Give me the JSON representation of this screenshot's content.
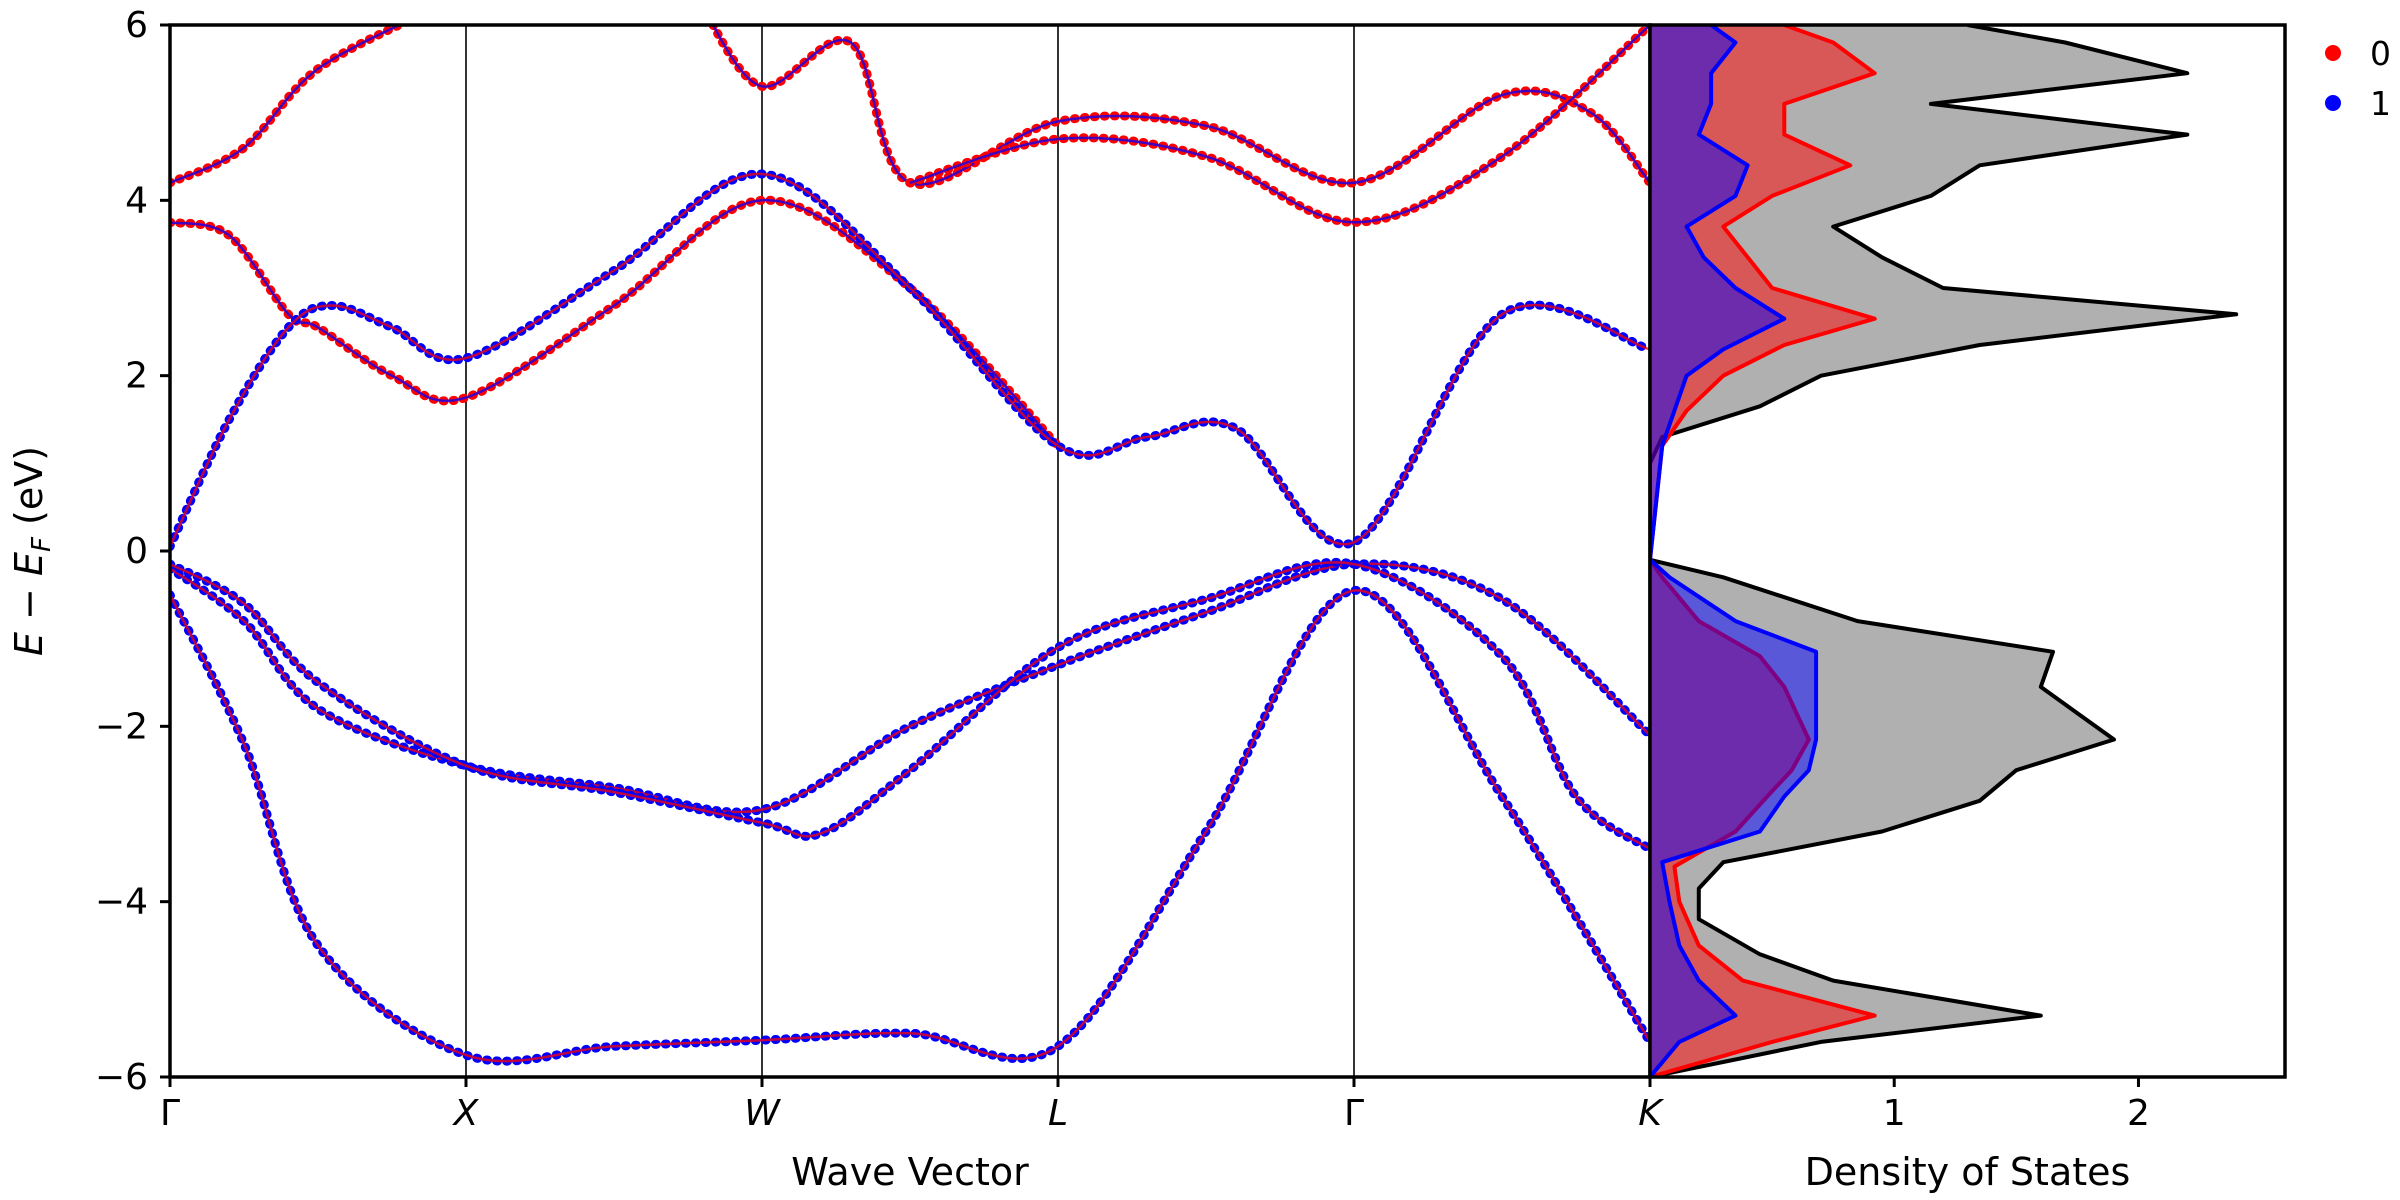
{
  "chart_data": [
    {
      "type": "line",
      "panel": "band-structure",
      "xlabel": "Wave Vector",
      "ylabel_parts": {
        "base": "E − E",
        "sub": "F",
        "unit": " (eV)"
      },
      "ylim": [
        -6,
        6
      ],
      "yticks": [
        -6,
        -4,
        -2,
        0,
        2,
        4,
        6
      ],
      "ytick_labels": [
        "−6",
        "−4",
        "−2",
        "0",
        "2",
        "4",
        "6"
      ],
      "kpath": {
        "positions": [
          0,
          1,
          2,
          3,
          4,
          5
        ],
        "labels": [
          "Γ",
          "X",
          "W",
          "L",
          "Γ",
          "K"
        ]
      },
      "colors": {
        "projection_0": "#ff0000",
        "projection_1": "#0000ff"
      },
      "bands": [
        {
          "name": "",
          "projection": "1",
          "x": [
            0,
            0.25,
            0.5,
            1.0,
            1.5,
            2.0,
            2.5,
            3.0,
            3.5,
            4.0,
            4.5,
            5.0
          ],
          "y": [
            -0.5,
            -2.2,
            -4.5,
            -5.75,
            -5.65,
            -5.58,
            -5.5,
            -5.65,
            -3.2,
            -0.45,
            -2.8,
            -5.6
          ]
        },
        {
          "name": "",
          "projection": "1",
          "x": [
            0,
            0.25,
            0.5,
            1.0,
            1.5,
            2.0,
            2.5,
            3.0,
            3.5,
            4.0,
            4.5,
            5.0
          ],
          "y": [
            -0.2,
            -0.8,
            -1.8,
            -2.45,
            -2.7,
            -2.95,
            -2.0,
            -1.3,
            -0.7,
            -0.15,
            -0.55,
            -2.1
          ]
        },
        {
          "name": "",
          "projection": "1",
          "x": [
            0,
            0.25,
            0.5,
            1.0,
            1.5,
            2.0,
            2.2,
            2.5,
            3.0,
            3.5,
            4.0,
            4.5,
            4.75,
            5.0
          ],
          "y": [
            -0.15,
            -0.6,
            -1.5,
            -2.45,
            -2.75,
            -3.1,
            -3.22,
            -2.5,
            -1.1,
            -0.55,
            -0.15,
            -1.2,
            -2.8,
            -3.4
          ]
        },
        {
          "name": "",
          "projection": "0",
          "x": [
            0,
            0.2,
            0.4,
            0.5,
            0.75,
            1.0,
            1.5,
            2.0,
            2.5,
            3.0
          ],
          "y": [
            3.75,
            3.6,
            2.7,
            2.55,
            2.0,
            1.75,
            2.8,
            4.0,
            3.0,
            1.2
          ]
        },
        {
          "name": "",
          "projection": "1",
          "x": [
            0,
            0.2,
            0.4,
            0.55,
            0.75,
            1.0,
            1.5,
            2.0,
            2.5,
            3.0,
            3.3,
            3.6,
            4.0,
            4.5,
            5.0
          ],
          "y": [
            0.05,
            1.5,
            2.55,
            2.8,
            2.55,
            2.2,
            3.2,
            4.3,
            3.0,
            1.2,
            1.3,
            1.4,
            0.1,
            2.7,
            2.3
          ]
        },
        {
          "name": "",
          "projection": "0",
          "x": [
            0,
            0.25,
            0.5,
            0.9
          ],
          "y": [
            4.2,
            4.6,
            5.5,
            6.2
          ]
        },
        {
          "name": "",
          "projection": "0",
          "x": [
            1.8,
            2.0,
            2.3,
            2.5,
            3.0,
            3.5,
            4.0,
            4.5,
            4.8,
            5.0
          ],
          "y": [
            6.2,
            5.3,
            5.8,
            4.2,
            4.9,
            4.85,
            4.2,
            5.2,
            5.0,
            4.2
          ]
        },
        {
          "name": "",
          "projection": "0",
          "x": [
            2.5,
            3.0,
            3.5,
            4.0,
            4.5,
            5.0
          ],
          "y": [
            4.2,
            4.7,
            4.5,
            3.75,
            4.5,
            6.0
          ]
        }
      ]
    },
    {
      "type": "area",
      "panel": "density-of-states",
      "xlabel": "Density of States",
      "xlim": [
        0,
        2.6
      ],
      "xticks": [
        1,
        2
      ],
      "xtick_labels": [
        "1",
        "2"
      ],
      "ylim": [
        -6,
        6
      ],
      "colors": {
        "total": "#000000",
        "total_fill": "#b0b0b0",
        "projection_0": "#ff0000",
        "projection_1": "#0000ff"
      },
      "legend": {
        "position": "top-right",
        "entries": [
          "0",
          "1"
        ]
      },
      "series": [
        {
          "name": "",
          "role": "total",
          "energy": [
            -6.0,
            -5.6,
            -5.3,
            -4.9,
            -4.6,
            -4.2,
            -3.85,
            -3.55,
            -3.2,
            -2.85,
            -2.5,
            -2.15,
            -1.85,
            -1.55,
            -1.15,
            -0.8,
            -0.3,
            -0.1,
            0.1,
            1.0,
            1.3,
            1.65,
            2.0,
            2.35,
            2.7,
            3.0,
            3.35,
            3.7,
            4.05,
            4.4,
            4.75,
            5.1,
            5.45,
            5.8,
            6.0
          ],
          "dos": [
            0,
            0.7,
            1.6,
            0.75,
            0.45,
            0.2,
            0.2,
            0.3,
            0.95,
            1.35,
            1.5,
            1.9,
            1.75,
            1.6,
            1.65,
            0.85,
            0.3,
            0,
            0,
            0,
            0.05,
            0.45,
            0.7,
            1.35,
            2.4,
            1.2,
            0.95,
            0.75,
            1.15,
            1.35,
            2.2,
            1.15,
            2.2,
            1.7,
            1.3
          ]
        },
        {
          "name": "",
          "role": "projection_0",
          "energy": [
            -6.0,
            -5.6,
            -5.3,
            -4.9,
            -4.5,
            -4.0,
            -3.6,
            -3.2,
            -2.8,
            -2.5,
            -2.15,
            -1.85,
            -1.55,
            -1.2,
            -0.8,
            -0.3,
            -0.1,
            1.2,
            1.6,
            2.0,
            2.35,
            2.65,
            3.0,
            3.35,
            3.7,
            4.05,
            4.4,
            4.75,
            5.1,
            5.45,
            5.8,
            6.0
          ],
          "dos": [
            0,
            0.5,
            0.92,
            0.38,
            0.2,
            0.12,
            0.1,
            0.35,
            0.48,
            0.58,
            0.65,
            0.6,
            0.55,
            0.45,
            0.2,
            0.05,
            0,
            0.05,
            0.15,
            0.3,
            0.55,
            0.92,
            0.5,
            0.4,
            0.3,
            0.5,
            0.82,
            0.55,
            0.55,
            0.92,
            0.75,
            0.55
          ]
        },
        {
          "name": "",
          "role": "projection_1",
          "energy": [
            -6.0,
            -5.6,
            -5.3,
            -4.9,
            -4.5,
            -4.0,
            -3.55,
            -3.2,
            -2.8,
            -2.5,
            -2.15,
            -1.85,
            -1.55,
            -1.15,
            -0.8,
            -0.3,
            -0.1,
            1.2,
            1.6,
            2.0,
            2.3,
            2.65,
            3.0,
            3.35,
            3.7,
            4.05,
            4.4,
            4.75,
            5.1,
            5.45,
            5.8,
            6.0
          ],
          "dos": [
            0,
            0.12,
            0.35,
            0.2,
            0.12,
            0.08,
            0.05,
            0.45,
            0.55,
            0.65,
            0.68,
            0.68,
            0.68,
            0.68,
            0.35,
            0.08,
            0,
            0.05,
            0.1,
            0.15,
            0.3,
            0.55,
            0.35,
            0.22,
            0.15,
            0.35,
            0.4,
            0.2,
            0.25,
            0.25,
            0.35,
            0.25
          ]
        }
      ]
    }
  ]
}
